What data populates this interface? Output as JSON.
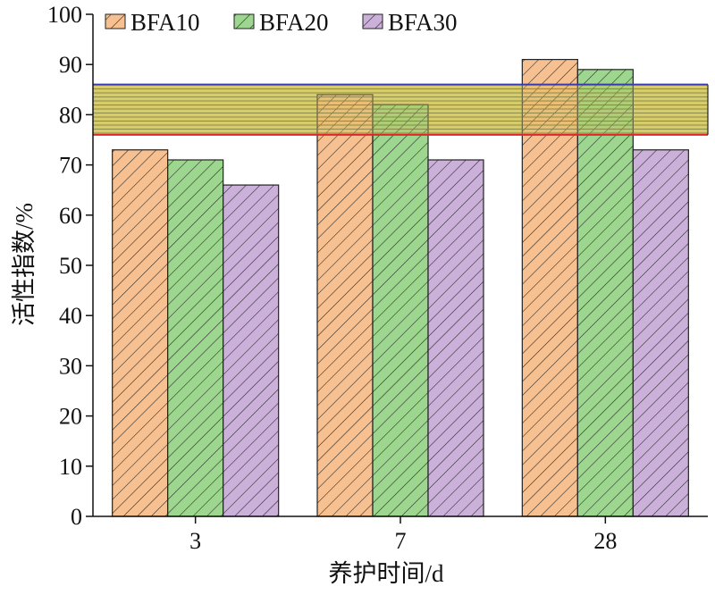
{
  "chart_data": {
    "type": "bar",
    "title": "",
    "xlabel": "养护时间/d",
    "ylabel": "活性指数/%",
    "categories": [
      "3",
      "7",
      "28"
    ],
    "series": [
      {
        "name": "BFA10",
        "values": [
          73,
          84,
          91
        ],
        "color": "#f6b57d"
      },
      {
        "name": "BFA20",
        "values": [
          71,
          82,
          89
        ],
        "color": "#8ccf7a"
      },
      {
        "name": "BFA30",
        "values": [
          66,
          71,
          73
        ],
        "color": "#c2a3d3"
      }
    ],
    "ylim": [
      0,
      100
    ],
    "yticks": [
      0,
      10,
      20,
      30,
      40,
      50,
      60,
      70,
      80,
      90,
      100
    ],
    "band": {
      "lower": 76,
      "upper": 86,
      "lower_color": "#e0282a",
      "upper_color": "#3a3ab0",
      "fill_color": "#d8cc6c"
    },
    "legend_position": "top-left",
    "grid": false
  }
}
